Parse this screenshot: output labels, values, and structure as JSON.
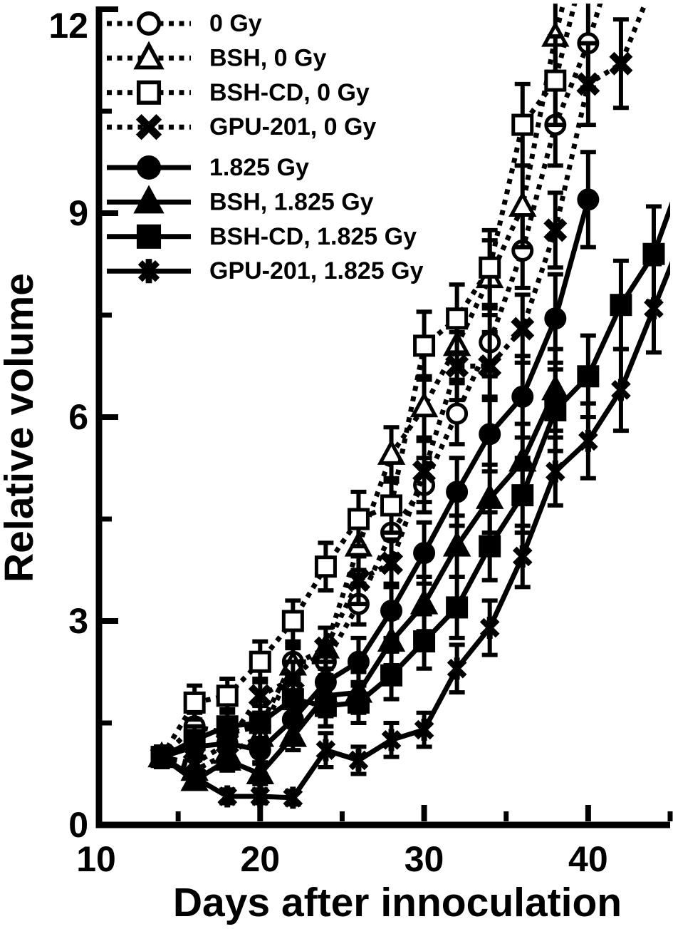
{
  "figure": {
    "background": "#ffffff",
    "ink_color": "#000000",
    "x_axis": {
      "label": "Days after innoculation",
      "min": 10,
      "max": 45,
      "major_ticks": [
        10,
        20,
        30,
        40
      ],
      "minor_ticks": [
        15,
        25,
        35,
        45
      ]
    },
    "y_axis": {
      "label": "Relative volume",
      "min": 0,
      "max": 12,
      "major_ticks": [
        0,
        3,
        6,
        9,
        12
      ],
      "minor_ticks": [
        1.5,
        4.5,
        7.5,
        10.5
      ]
    }
  },
  "chart_data": {
    "type": "line",
    "title": "",
    "xlabel": "Days after innoculation",
    "ylabel": "Relative volume",
    "xlim": [
      10,
      45
    ],
    "ylim": [
      0,
      12
    ],
    "grid": false,
    "legend_position": "top-left-inside",
    "error_bars": true,
    "series": [
      {
        "name": "0 Gy",
        "marker": "circle",
        "fill": "open",
        "line": "dotted",
        "x": [
          14,
          16,
          18,
          20,
          22,
          24,
          26,
          28,
          30,
          32,
          34,
          36,
          38,
          40
        ],
        "y": [
          1.0,
          1.45,
          1.35,
          1.45,
          2.4,
          2.4,
          3.25,
          4.3,
          5.0,
          6.05,
          7.1,
          8.45,
          10.3,
          11.5
        ],
        "err": [
          0.15,
          0.2,
          0.2,
          0.2,
          0.25,
          0.25,
          0.3,
          0.35,
          0.4,
          0.45,
          0.5,
          0.55,
          0.6,
          0.65
        ],
        "ext": [
          41,
          12.3
        ]
      },
      {
        "name": "BSH, 0 Gy",
        "marker": "triangle",
        "fill": "open",
        "line": "dotted",
        "x": [
          14,
          16,
          18,
          20,
          22,
          24,
          26,
          28,
          30,
          32,
          34,
          36,
          38
        ],
        "y": [
          1.0,
          0.8,
          1.05,
          1.3,
          2.35,
          2.6,
          4.1,
          5.45,
          6.15,
          7.05,
          8.05,
          9.1,
          11.6
        ],
        "err": [
          0.15,
          0.15,
          0.18,
          0.2,
          0.25,
          0.3,
          0.35,
          0.4,
          0.45,
          0.5,
          0.55,
          0.6,
          0.7
        ],
        "ext": [
          39,
          12.6
        ]
      },
      {
        "name": "BSH-CD, 0 Gy",
        "marker": "square",
        "fill": "open",
        "line": "dotted",
        "x": [
          14,
          16,
          18,
          20,
          22,
          24,
          26,
          28,
          30,
          32,
          34,
          36,
          38
        ],
        "y": [
          1.0,
          1.8,
          1.9,
          2.4,
          3.0,
          3.8,
          4.5,
          4.7,
          7.05,
          7.45,
          8.2,
          10.3,
          10.95
        ],
        "err": [
          0.15,
          0.25,
          0.25,
          0.3,
          0.3,
          0.35,
          0.4,
          0.4,
          0.5,
          0.5,
          0.55,
          0.6,
          0.65
        ],
        "ext": [
          39.5,
          12.4
        ]
      },
      {
        "name": "GPU-201, 0 Gy",
        "marker": "x",
        "fill": "filled",
        "line": "dotted",
        "x": [
          14,
          16,
          18,
          20,
          22,
          24,
          26,
          28,
          30,
          32,
          34,
          36,
          38,
          40,
          42
        ],
        "y": [
          1.0,
          0.9,
          1.2,
          1.9,
          2.15,
          2.6,
          3.6,
          3.85,
          5.2,
          6.75,
          6.75,
          7.3,
          8.75,
          10.9,
          11.2
        ],
        "err": [
          0.15,
          0.15,
          0.2,
          0.25,
          0.25,
          0.3,
          0.35,
          0.35,
          0.45,
          0.5,
          0.5,
          0.5,
          0.55,
          0.6,
          0.65
        ],
        "ext": [
          44,
          12.4
        ]
      },
      {
        "name": "1.825 Gy",
        "marker": "circle",
        "fill": "filled",
        "line": "solid",
        "x": [
          14,
          16,
          18,
          20,
          22,
          24,
          26,
          28,
          30,
          32,
          34,
          36,
          38,
          40
        ],
        "y": [
          1.0,
          1.15,
          1.2,
          1.1,
          1.55,
          2.1,
          2.4,
          3.15,
          4.0,
          4.9,
          5.75,
          6.3,
          7.45,
          9.2
        ],
        "err": [
          0.15,
          0.18,
          0.18,
          0.18,
          0.25,
          0.3,
          0.35,
          0.4,
          0.45,
          0.5,
          0.55,
          0.6,
          0.65,
          0.7
        ],
        "ext": null
      },
      {
        "name": "BSH, 1.825 Gy",
        "marker": "triangle",
        "fill": "filled",
        "line": "solid",
        "x": [
          14,
          16,
          18,
          20,
          22,
          24,
          26,
          28,
          30,
          32,
          34,
          36,
          38
        ],
        "y": [
          1.0,
          0.65,
          0.95,
          0.75,
          1.3,
          1.9,
          1.95,
          2.7,
          3.25,
          4.1,
          4.8,
          5.35,
          6.4
        ],
        "err": [
          0.15,
          0.12,
          0.15,
          0.15,
          0.2,
          0.3,
          0.3,
          0.35,
          0.4,
          0.45,
          0.5,
          0.55,
          0.6
        ],
        "ext": null
      },
      {
        "name": "BSH-CD, 1.825 Gy",
        "marker": "square",
        "fill": "filled",
        "line": "solid",
        "x": [
          14,
          16,
          18,
          20,
          22,
          24,
          26,
          28,
          30,
          32,
          34,
          36,
          38,
          40,
          42,
          44
        ],
        "y": [
          1.0,
          1.25,
          1.45,
          1.5,
          1.85,
          1.75,
          1.8,
          2.2,
          2.7,
          3.2,
          4.1,
          4.85,
          6.1,
          6.6,
          7.65,
          8.4
        ],
        "err": [
          0.15,
          0.2,
          0.25,
          0.25,
          0.3,
          0.3,
          0.3,
          0.35,
          0.4,
          0.45,
          0.5,
          0.55,
          0.6,
          0.6,
          0.65,
          0.7
        ],
        "ext": [
          45.5,
          9.4
        ]
      },
      {
        "name": "GPU-201, 1.825 Gy",
        "marker": "star",
        "fill": "filled",
        "line": "solid",
        "x": [
          14,
          16,
          18,
          20,
          22,
          24,
          26,
          28,
          30,
          32,
          34,
          36,
          38,
          40,
          42,
          44
        ],
        "y": [
          1.0,
          0.7,
          0.42,
          0.42,
          0.4,
          1.1,
          0.95,
          1.25,
          1.4,
          2.3,
          2.9,
          3.95,
          5.2,
          5.65,
          6.4,
          7.6
        ],
        "err": [
          0.12,
          0.12,
          0.1,
          0.1,
          0.1,
          0.25,
          0.2,
          0.25,
          0.25,
          0.35,
          0.4,
          0.45,
          0.5,
          0.55,
          0.6,
          0.65
        ],
        "ext": [
          45.5,
          8.5
        ]
      }
    ]
  }
}
